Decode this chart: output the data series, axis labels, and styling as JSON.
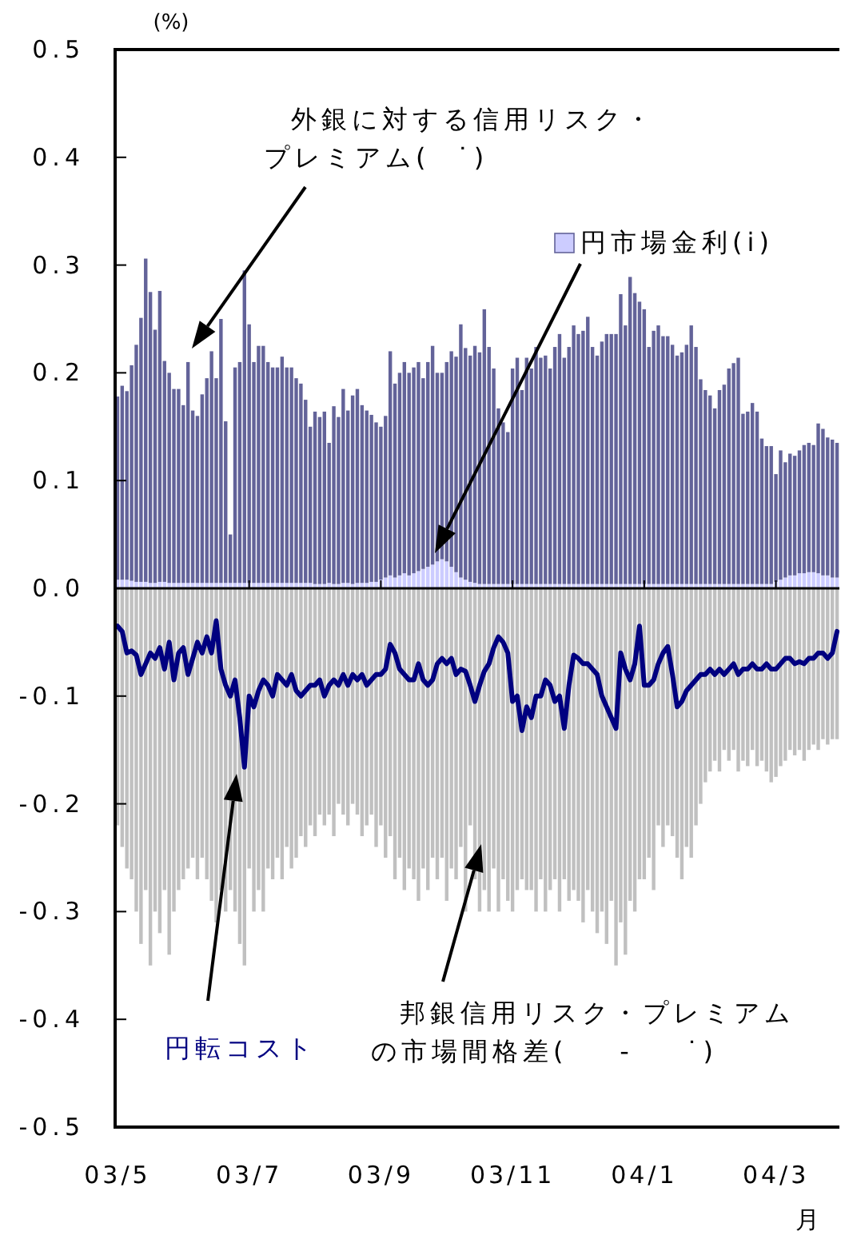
{
  "chart_data": {
    "type": "bar",
    "ylabel": "(%)",
    "xlabel": "月",
    "ylim": [
      -0.5,
      0.5
    ],
    "yticks": [
      {
        "value": -0.5,
        "label": "-0.5"
      },
      {
        "value": -0.4,
        "label": "-0.4"
      },
      {
        "value": -0.3,
        "label": "-0.3"
      },
      {
        "value": -0.2,
        "label": "-0.2"
      },
      {
        "value": -0.1,
        "label": "-0.1"
      },
      {
        "value": 0,
        "label": "0.0"
      },
      {
        "value": 0.1,
        "label": "0.1"
      },
      {
        "value": 0.2,
        "label": "0.2"
      },
      {
        "value": 0.3,
        "label": "0.3"
      },
      {
        "value": 0.4,
        "label": "0.4"
      },
      {
        "value": 0.5,
        "label": "0.5"
      }
    ],
    "stacked": true,
    "categories": [
      "03/5",
      null,
      null,
      null,
      null,
      null,
      null,
      null,
      null,
      null,
      null,
      null,
      null,
      null,
      null,
      null,
      null,
      null,
      null,
      null,
      null,
      null,
      null,
      null,
      null,
      null,
      null,
      null,
      "03/7",
      null,
      null,
      null,
      null,
      null,
      null,
      null,
      null,
      null,
      null,
      null,
      null,
      null,
      null,
      null,
      null,
      null,
      null,
      null,
      null,
      null,
      null,
      null,
      null,
      null,
      null,
      null,
      "03/9",
      null,
      null,
      null,
      null,
      null,
      null,
      null,
      null,
      null,
      null,
      null,
      null,
      null,
      null,
      null,
      null,
      null,
      null,
      null,
      null,
      null,
      null,
      null,
      null,
      null,
      null,
      null,
      "03/11",
      null,
      null,
      null,
      null,
      null,
      null,
      null,
      null,
      null,
      null,
      null,
      null,
      null,
      null,
      null,
      null,
      null,
      null,
      null,
      null,
      null,
      null,
      null,
      null,
      null,
      null,
      null,
      "04/1",
      null,
      null,
      null,
      null,
      null,
      null,
      null,
      null,
      null,
      null,
      null,
      null,
      null,
      null,
      null,
      null,
      null,
      null,
      null,
      null,
      null,
      null,
      null,
      null,
      null,
      null,
      null,
      "04/3",
      null,
      null,
      null,
      null,
      null,
      null,
      null,
      null,
      null,
      null,
      null,
      null,
      null
    ],
    "series": [
      {
        "name": "円市場金利(i)",
        "color": "#ccccff",
        "values": [
          0.008,
          0.008,
          0.008,
          0.007,
          0.006,
          0.006,
          0.006,
          0.005,
          0.005,
          0.006,
          0.006,
          0.005,
          0.005,
          0.005,
          0.005,
          0.005,
          0.005,
          0.005,
          0.005,
          0.005,
          0.005,
          0.005,
          0.005,
          0.005,
          0.005,
          0.005,
          0.005,
          0.005,
          0.005,
          0.005,
          0.005,
          0.005,
          0.005,
          0.005,
          0.005,
          0.005,
          0.005,
          0.005,
          0.005,
          0.005,
          0.005,
          0.005,
          0.004,
          0.004,
          0.004,
          0.005,
          0.004,
          0.004,
          0.005,
          0.005,
          0.004,
          0.005,
          0.005,
          0.005,
          0.006,
          0.006,
          0.008,
          0.01,
          0.012,
          0.01,
          0.012,
          0.014,
          0.012,
          0.014,
          0.016,
          0.018,
          0.02,
          0.022,
          0.025,
          0.027,
          0.025,
          0.02,
          0.015,
          0.01,
          0.008,
          0.006,
          0.005,
          0.004,
          0.004,
          0.004,
          0.004,
          0.004,
          0.004,
          0.004,
          0.004,
          0.004,
          0.004,
          0.004,
          0.004,
          0.004,
          0.004,
          0.004,
          0.004,
          0.004,
          0.004,
          0.004,
          0.004,
          0.004,
          0.004,
          0.004,
          0.004,
          0.004,
          0.004,
          0.004,
          0.004,
          0.004,
          0.004,
          0.004,
          0.004,
          0.004,
          0.004,
          0.004,
          0.004,
          0.004,
          0.004,
          0.004,
          0.004,
          0.004,
          0.004,
          0.004,
          0.004,
          0.004,
          0.004,
          0.004,
          0.004,
          0.004,
          0.004,
          0.004,
          0.004,
          0.004,
          0.004,
          0.004,
          0.004,
          0.004,
          0.004,
          0.004,
          0.004,
          0.004,
          0.004,
          0.004,
          0.006,
          0.008,
          0.01,
          0.012,
          0.012,
          0.014,
          0.014,
          0.015,
          0.015,
          0.014,
          0.012,
          0.012,
          0.01,
          0.01
        ]
      },
      {
        "name": "外銀に対する信用リスク・プレミアム(  ˙)",
        "color": "#636399",
        "values": [
          0.17,
          0.18,
          0.175,
          0.2,
          0.22,
          0.245,
          0.3,
          0.27,
          0.235,
          0.27,
          0.205,
          0.195,
          0.18,
          0.18,
          0.165,
          0.205,
          0.16,
          0.155,
          0.175,
          0.19,
          0.215,
          0.19,
          0.245,
          0.15,
          0.045,
          0.2,
          0.205,
          0.29,
          0.24,
          0.205,
          0.22,
          0.22,
          0.205,
          0.2,
          0.2,
          0.21,
          0.2,
          0.2,
          0.19,
          0.185,
          0.17,
          0.145,
          0.16,
          0.155,
          0.16,
          0.13,
          0.165,
          0.155,
          0.18,
          0.16,
          0.175,
          0.18,
          0.165,
          0.16,
          0.155,
          0.148,
          0.142,
          0.15,
          0.208,
          0.18,
          0.188,
          0.196,
          0.188,
          0.191,
          0.194,
          0.177,
          0.19,
          0.203,
          0.175,
          0.173,
          0.185,
          0.2,
          0.2,
          0.235,
          0.215,
          0.21,
          0.22,
          0.215,
          0.255,
          0.22,
          0.2,
          0.163,
          0.15,
          0.141,
          0.2,
          0.21,
          0.18,
          0.21,
          0.2,
          0.22,
          0.21,
          0.212,
          0.2,
          0.22,
          0.232,
          0.21,
          0.22,
          0.24,
          0.232,
          0.235,
          0.248,
          0.22,
          0.212,
          0.225,
          0.232,
          0.232,
          0.232,
          0.269,
          0.24,
          0.285,
          0.27,
          0.262,
          0.255,
          0.22,
          0.235,
          0.24,
          0.23,
          0.23,
          0.222,
          0.212,
          0.215,
          0.222,
          0.24,
          0.22,
          0.19,
          0.18,
          0.175,
          0.163,
          0.18,
          0.185,
          0.2,
          0.205,
          0.21,
          0.158,
          0.16,
          0.168,
          0.16,
          0.135,
          0.128,
          0.128,
          0.1,
          0.12,
          0.107,
          0.113,
          0.111,
          0.114,
          0.119,
          0.12,
          0.118,
          0.139,
          0.136,
          0.128,
          0.128,
          0.125
        ]
      },
      {
        "name": "邦銀信用リスク・プレミアムの市場間格差(    -    ˙)",
        "color": "#c0c0c0",
        "values": [
          -0.22,
          -0.24,
          -0.26,
          -0.27,
          -0.3,
          -0.33,
          -0.28,
          -0.35,
          -0.3,
          -0.32,
          -0.28,
          -0.34,
          -0.3,
          -0.28,
          -0.27,
          -0.26,
          -0.25,
          -0.27,
          -0.25,
          -0.27,
          -0.29,
          -0.31,
          -0.28,
          -0.3,
          -0.28,
          -0.3,
          -0.33,
          -0.35,
          -0.26,
          -0.3,
          -0.28,
          -0.3,
          -0.26,
          -0.27,
          -0.25,
          -0.27,
          -0.24,
          -0.26,
          -0.25,
          -0.23,
          -0.24,
          -0.22,
          -0.23,
          -0.21,
          -0.22,
          -0.21,
          -0.23,
          -0.2,
          -0.21,
          -0.22,
          -0.2,
          -0.21,
          -0.23,
          -0.22,
          -0.21,
          -0.24,
          -0.22,
          -0.25,
          -0.23,
          -0.27,
          -0.25,
          -0.28,
          -0.26,
          -0.27,
          -0.29,
          -0.26,
          -0.28,
          -0.25,
          -0.27,
          -0.25,
          -0.29,
          -0.26,
          -0.27,
          -0.24,
          -0.3,
          -0.22,
          -0.27,
          -0.3,
          -0.28,
          -0.3,
          -0.26,
          -0.3,
          -0.27,
          -0.29,
          -0.3,
          -0.28,
          -0.27,
          -0.28,
          -0.28,
          -0.3,
          -0.27,
          -0.3,
          -0.28,
          -0.27,
          -0.3,
          -0.27,
          -0.29,
          -0.28,
          -0.29,
          -0.31,
          -0.28,
          -0.3,
          -0.32,
          -0.3,
          -0.33,
          -0.29,
          -0.35,
          -0.31,
          -0.34,
          -0.29,
          -0.3,
          -0.27,
          -0.27,
          -0.25,
          -0.28,
          -0.22,
          -0.24,
          -0.22,
          -0.23,
          -0.25,
          -0.27,
          -0.24,
          -0.25,
          -0.22,
          -0.2,
          -0.18,
          -0.17,
          -0.16,
          -0.17,
          -0.15,
          -0.16,
          -0.15,
          -0.17,
          -0.16,
          -0.165,
          -0.15,
          -0.165,
          -0.16,
          -0.17,
          -0.18,
          -0.175,
          -0.165,
          -0.16,
          -0.15,
          -0.155,
          -0.15,
          -0.16,
          -0.15,
          -0.145,
          -0.15,
          -0.14,
          -0.145,
          -0.14,
          -0.14
        ]
      },
      {
        "name": "円転コスト",
        "type": "line",
        "color": "#000080",
        "values": [
          -0.035,
          -0.04,
          -0.06,
          -0.058,
          -0.062,
          -0.08,
          -0.07,
          -0.06,
          -0.065,
          -0.055,
          -0.075,
          -0.05,
          -0.085,
          -0.06,
          -0.055,
          -0.08,
          -0.065,
          -0.05,
          -0.06,
          -0.045,
          -0.06,
          -0.03,
          -0.075,
          -0.09,
          -0.1,
          -0.085,
          -0.12,
          -0.166,
          -0.1,
          -0.11,
          -0.095,
          -0.085,
          -0.09,
          -0.1,
          -0.08,
          -0.085,
          -0.09,
          -0.08,
          -0.095,
          -0.1,
          -0.095,
          -0.09,
          -0.09,
          -0.085,
          -0.1,
          -0.09,
          -0.085,
          -0.09,
          -0.08,
          -0.09,
          -0.08,
          -0.085,
          -0.08,
          -0.09,
          -0.085,
          -0.08,
          -0.08,
          -0.075,
          -0.052,
          -0.06,
          -0.075,
          -0.08,
          -0.085,
          -0.085,
          -0.07,
          -0.085,
          -0.09,
          -0.085,
          -0.07,
          -0.065,
          -0.07,
          -0.065,
          -0.08,
          -0.075,
          -0.077,
          -0.09,
          -0.105,
          -0.09,
          -0.077,
          -0.07,
          -0.055,
          -0.045,
          -0.05,
          -0.06,
          -0.105,
          -0.1,
          -0.132,
          -0.11,
          -0.12,
          -0.1,
          -0.1,
          -0.085,
          -0.09,
          -0.105,
          -0.1,
          -0.13,
          -0.09,
          -0.062,
          -0.065,
          -0.07,
          -0.07,
          -0.075,
          -0.08,
          -0.1,
          -0.11,
          -0.12,
          -0.13,
          -0.06,
          -0.075,
          -0.085,
          -0.07,
          -0.035,
          -0.09,
          -0.09,
          -0.085,
          -0.07,
          -0.06,
          -0.054,
          -0.08,
          -0.11,
          -0.105,
          -0.095,
          -0.09,
          -0.085,
          -0.08,
          -0.08,
          -0.075,
          -0.08,
          -0.075,
          -0.08,
          -0.075,
          -0.07,
          -0.08,
          -0.075,
          -0.075,
          -0.07,
          -0.075,
          -0.075,
          -0.07,
          -0.075,
          -0.075,
          -0.07,
          -0.065,
          -0.065,
          -0.07,
          -0.068,
          -0.07,
          -0.065,
          -0.065,
          -0.06,
          -0.06,
          -0.065,
          -0.06,
          -0.04
        ]
      }
    ]
  }
}
